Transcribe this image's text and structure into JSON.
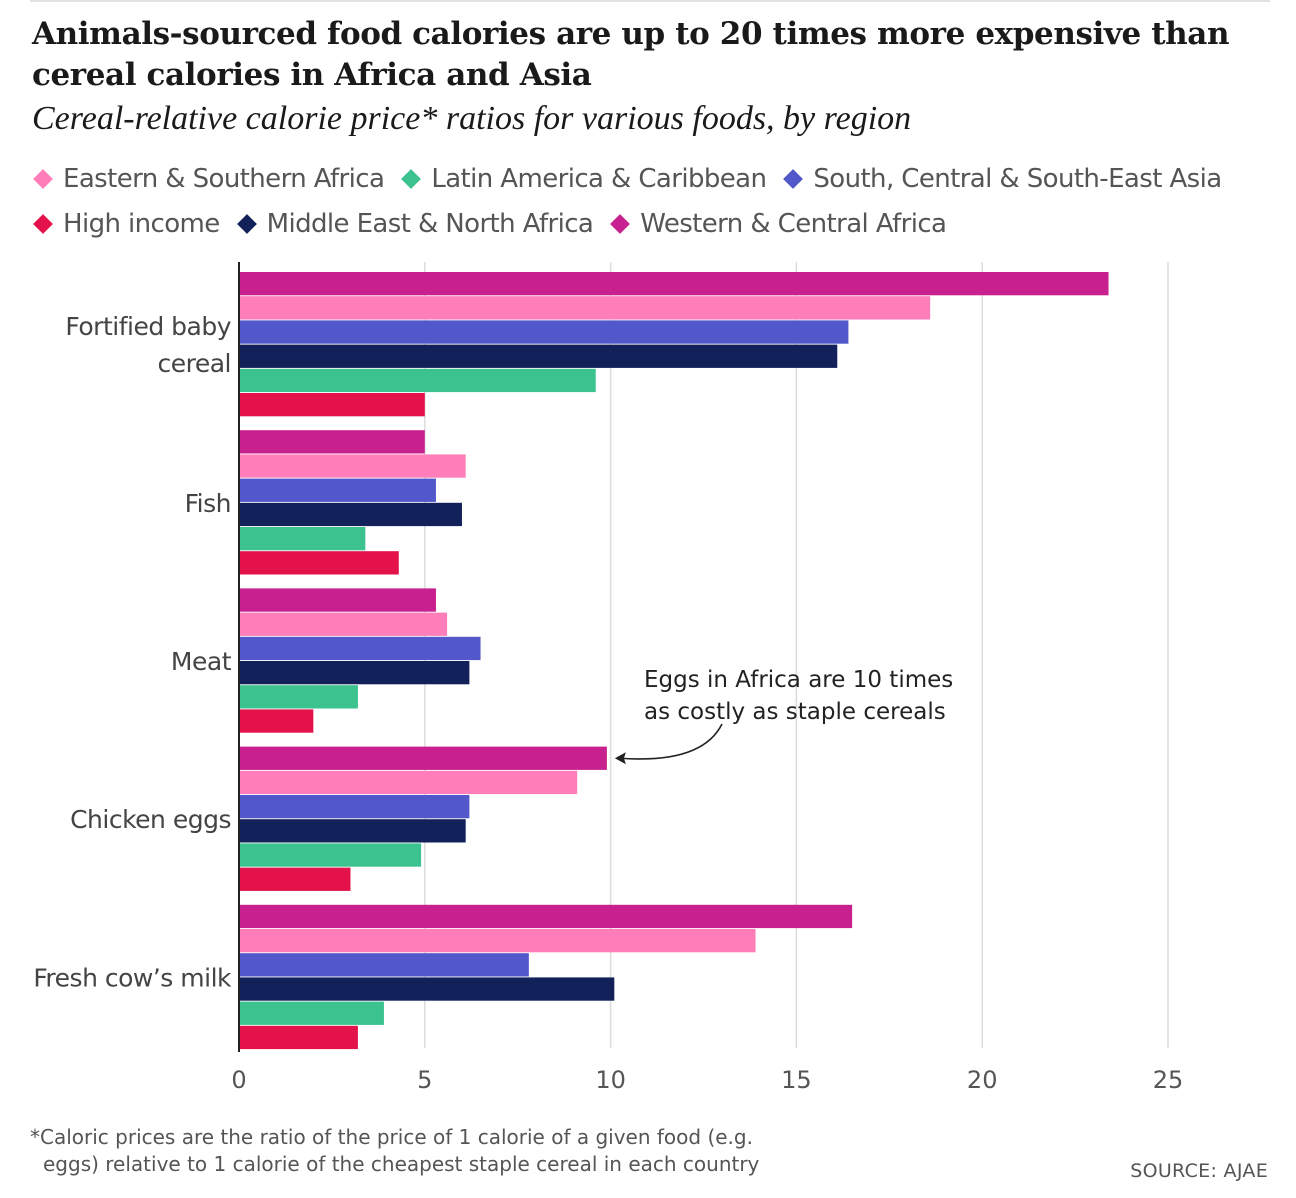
{
  "title": "Animals-sourced food calories are up to 20 times more expensive than cereal calories in Africa and Asia",
  "subtitle": "Cereal-relative calorie price* ratios for various foods, by region",
  "legend": {
    "rows": [
      [
        {
          "label": "Eastern & Southern Africa",
          "color": "#ff7eb9"
        },
        {
          "label": "Latin America & Caribbean",
          "color": "#3cc28e"
        },
        {
          "label": "South, Central & South-East Asia",
          "color": "#5257c9"
        }
      ],
      [
        {
          "label": "High income",
          "color": "#e3124a"
        },
        {
          "label": "Middle East & North Africa",
          "color": "#13215a"
        },
        {
          "label": "Western & Central Africa",
          "color": "#c8208e"
        }
      ]
    ]
  },
  "chart_data": {
    "type": "bar",
    "orientation": "horizontal",
    "categories": [
      {
        "label_lines": [
          "Fortified baby",
          "cereal"
        ]
      },
      {
        "label_lines": [
          "Fish"
        ]
      },
      {
        "label_lines": [
          "Meat"
        ]
      },
      {
        "label_lines": [
          "Chicken eggs"
        ]
      },
      {
        "label_lines": [
          "Fresh cow’s milk"
        ]
      }
    ],
    "series": [
      {
        "name": "Western & Central Africa",
        "color": "#c8208e",
        "values": [
          23.4,
          5.0,
          5.3,
          9.9,
          16.5
        ]
      },
      {
        "name": "Eastern & Southern Africa",
        "color": "#ff7eb9",
        "values": [
          18.6,
          6.1,
          5.6,
          9.1,
          13.9
        ]
      },
      {
        "name": "South, Central & South-East Asia",
        "color": "#5257c9",
        "values": [
          16.4,
          5.3,
          6.5,
          6.2,
          7.8
        ]
      },
      {
        "name": "Middle East & North Africa",
        "color": "#13215a",
        "values": [
          16.1,
          6.0,
          6.2,
          6.1,
          10.1
        ]
      },
      {
        "name": "Latin America & Caribbean",
        "color": "#3cc28e",
        "values": [
          9.6,
          3.4,
          3.2,
          4.9,
          3.9
        ]
      },
      {
        "name": "High income",
        "color": "#e3124a",
        "values": [
          5.0,
          4.3,
          2.0,
          3.0,
          3.2
        ]
      }
    ],
    "xlim": [
      0,
      25
    ],
    "xticks": [
      0,
      5,
      10,
      15,
      20,
      25
    ],
    "grid": true,
    "legend_placement": "top",
    "annotation": {
      "lines": [
        "Eggs in Africa are 10 times",
        "as costly as staple cereals"
      ],
      "target": {
        "category": "Chicken eggs",
        "series": "Western & Central Africa"
      }
    }
  },
  "footnote": {
    "lines": [
      "*Caloric prices are the ratio of the price of 1 calorie of a given food (e.g.",
      "eggs) relative to 1 calorie of the cheapest staple cereal in each country"
    ]
  },
  "source": "SOURCE: AJAE"
}
